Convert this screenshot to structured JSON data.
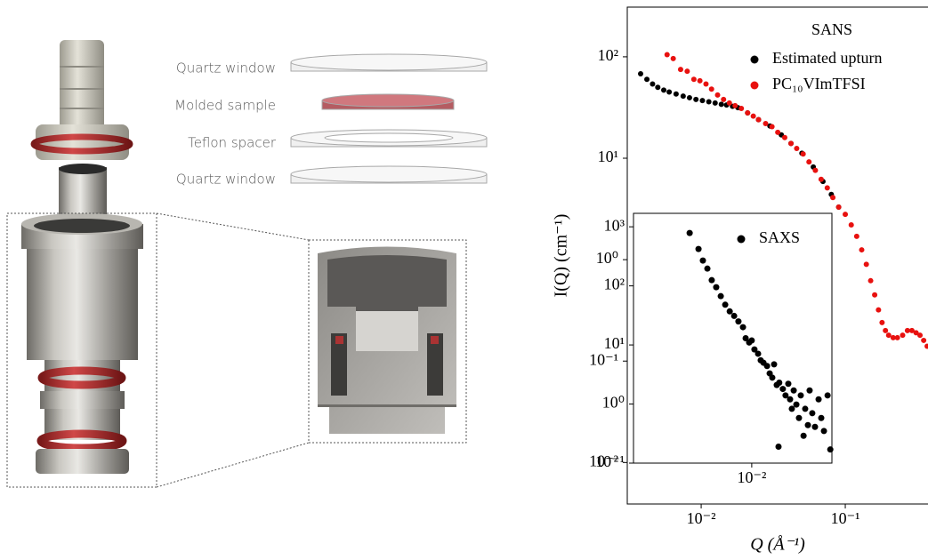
{
  "diagram": {
    "labels": [
      "Quartz window",
      "Molded sample",
      "Teflon spacer",
      "Quartz window"
    ]
  },
  "chart_data": [
    {
      "type": "scatter",
      "xlabel": "Q (Å⁻¹)",
      "ylabel": "I(Q) (cm⁻¹)",
      "legend_title": "SANS",
      "legend": "upper right",
      "log_x": true,
      "log_y": true,
      "xlim": [
        0.00307,
        0.375
      ],
      "ylim": [
        0.0039,
        309
      ],
      "xticks": [
        {
          "value": 0.01,
          "label": "10⁻²"
        },
        {
          "value": 0.1,
          "label": "10⁻¹"
        }
      ],
      "yticks": [
        {
          "value": 0.01,
          "label": "10⁻²"
        },
        {
          "value": 0.1,
          "label": "10⁻¹"
        },
        {
          "value": 1,
          "label": "10⁰"
        },
        {
          "value": 10,
          "label": "10¹"
        },
        {
          "value": 100,
          "label": "10²"
        }
      ],
      "series": [
        {
          "name": "Estimated upturn",
          "color": "#000000",
          "x": [
            0.0038,
            0.0042,
            0.0046,
            0.005,
            0.0055,
            0.006,
            0.0067,
            0.0075,
            0.0083,
            0.0092,
            0.0102,
            0.0113,
            0.0125,
            0.0138,
            0.015,
            0.0165,
            0.018,
            0.021,
            0.025,
            0.03,
            0.036,
            0.042,
            0.05,
            0.06,
            0.07,
            0.08,
            0.09
          ],
          "values": [
            68,
            60,
            54,
            50,
            47,
            45,
            43,
            41,
            39.5,
            38,
            37,
            36,
            35,
            34,
            33.5,
            32.5,
            31.5,
            28,
            24,
            20.8,
            17,
            14,
            11.2,
            8.2,
            5.9,
            4.4,
            3.3
          ]
        },
        {
          "name": "PC₁₀VImTFSI",
          "color": "#e8110f",
          "x": [
            0.0058,
            0.0064,
            0.0072,
            0.008,
            0.0089,
            0.0098,
            0.0108,
            0.0118,
            0.013,
            0.0143,
            0.0157,
            0.0172,
            0.019,
            0.021,
            0.023,
            0.025,
            0.028,
            0.031,
            0.034,
            0.038,
            0.042,
            0.046,
            0.051,
            0.056,
            0.062,
            0.068,
            0.075,
            0.082,
            0.09,
            0.1,
            0.11,
            0.12,
            0.13,
            0.14,
            0.15,
            0.16,
            0.17,
            0.18,
            0.19,
            0.2,
            0.215,
            0.23,
            0.25,
            0.27,
            0.29,
            0.31,
            0.33,
            0.35,
            0.37
          ],
          "values": [
            105,
            96,
            75,
            72,
            60,
            58,
            54,
            48,
            42,
            38,
            35,
            33,
            31,
            28,
            26,
            24,
            22,
            20.5,
            18,
            16,
            14,
            12.5,
            11,
            9.2,
            7.6,
            6.2,
            5.1,
            4.1,
            3.3,
            2.8,
            2.2,
            1.7,
            1.25,
            0.9,
            0.62,
            0.45,
            0.32,
            0.24,
            0.2,
            0.18,
            0.17,
            0.17,
            0.18,
            0.2,
            0.2,
            0.19,
            0.18,
            0.16,
            0.14
          ]
        }
      ]
    },
    {
      "type": "scatter",
      "legend": "upper right",
      "log_x": true,
      "log_y": true,
      "xlim": [
        0.005,
        0.016
      ],
      "ylim": [
        0.1,
        1690
      ],
      "xticks": [
        {
          "value": 0.01,
          "label": "10⁻²"
        }
      ],
      "yticks": [
        {
          "value": 0.1,
          "label": "10⁻¹"
        },
        {
          "value": 1,
          "label": "10⁰"
        },
        {
          "value": 10,
          "label": "10¹"
        },
        {
          "value": 100,
          "label": "10²"
        },
        {
          "value": 1000,
          "label": "10³"
        }
      ],
      "series": [
        {
          "name": "SAXS",
          "color": "#000000",
          "x": [
            0.00695,
            0.00732,
            0.00751,
            0.00771,
            0.00791,
            0.00812,
            0.00834,
            0.00856,
            0.00879,
            0.00902,
            0.00925,
            0.0095,
            0.00965,
            0.00985,
            0.01,
            0.01016,
            0.01038,
            0.01054,
            0.01071,
            0.01094,
            0.01111,
            0.01128,
            0.0114,
            0.01158,
            0.0117,
            0.01175,
            0.012,
            0.01219,
            0.01239,
            0.01252,
            0.01265,
            0.01279,
            0.01299,
            0.01319,
            0.01333,
            0.01355,
            0.01368,
            0.0139,
            0.01404,
            0.01426,
            0.01449,
            0.0148,
            0.01503,
            0.01527,
            0.0156,
            0.01585
          ],
          "values": [
            785,
            421,
            268,
            196,
            125,
            95,
            67,
            48,
            37,
            31,
            25,
            20,
            13,
            11,
            11.9,
            8.4,
            7.1,
            5.5,
            5.0,
            4.4,
            3.3,
            2.8,
            4.7,
            2.1,
            0.19,
            2.3,
            1.8,
            1.4,
            2.2,
            1.2,
            0.83,
            1.7,
            0.98,
            0.58,
            1.4,
            0.29,
            0.83,
            0.44,
            1.7,
            0.7,
            0.41,
            1.2,
            0.58,
            0.35,
            1.4,
            0.17
          ]
        }
      ]
    }
  ]
}
